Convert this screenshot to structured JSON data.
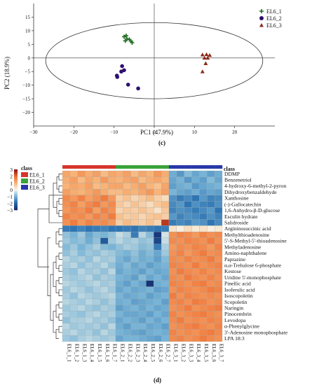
{
  "chart_data": [
    {
      "type": "scatter",
      "panel_label": "(c)",
      "xlabel": "PC1 (47.9%)",
      "ylabel": "PC2 (18.9%)",
      "xlim": [
        -30,
        30
      ],
      "ylim": [
        -25,
        20
      ],
      "xticks": [
        -30,
        -20,
        -10,
        0,
        10,
        20
      ],
      "yticks": [
        -20,
        -15,
        -10,
        -5,
        0,
        5,
        10,
        15
      ],
      "ellipse": true,
      "legend_position": "top-right",
      "series": [
        {
          "name": "EL6_1",
          "marker": "plus",
          "color": "#1f6b1f",
          "x": [
            -7.5,
            -6.8,
            -6.2,
            -7.2,
            -5.8,
            -7.0,
            -5.5
          ],
          "y": [
            7.8,
            7.0,
            6.8,
            6.3,
            6.2,
            8.2,
            5.6
          ]
        },
        {
          "name": "EL6_2",
          "marker": "circle",
          "color": "#2e0f6e",
          "x": [
            -8.0,
            -7.5,
            -8.2,
            -9.3,
            -9.2,
            -6.5,
            -4.0
          ],
          "y": [
            -3.0,
            -4.5,
            -5.0,
            -6.5,
            -7.0,
            -9.8,
            -11.2
          ]
        },
        {
          "name": "EL6_3",
          "marker": "triangle",
          "color": "#8b2a1a",
          "x": [
            12.0,
            13.0,
            13.8,
            12.5,
            13.3,
            12.8,
            12.0
          ],
          "y": [
            1.2,
            1.3,
            1.0,
            0.0,
            0.0,
            -2.0,
            -5.0
          ]
        }
      ]
    },
    {
      "type": "heatmap",
      "panel_label": "(d)",
      "class_label": "class",
      "class_legend": [
        {
          "name": "EL6_1",
          "color": "#d7342b"
        },
        {
          "name": "EL6_2",
          "color": "#3aa33a"
        },
        {
          "name": "EL6_3",
          "color": "#2838a8"
        }
      ],
      "colorbar": {
        "min": -3,
        "max": 3,
        "ticks": [
          3,
          2,
          1,
          0,
          -1,
          -2,
          -3
        ]
      },
      "columns": [
        "EL6_1_1",
        "EL6_1_2",
        "EL6_1_3",
        "EL6_1_4",
        "EL6_1_5",
        "EL6_1_6",
        "EL6_1_7",
        "EL6_2_1",
        "EL6_2_2",
        "EL6_2_3",
        "EL6_2_4",
        "EL6_2_5",
        "EL6_2_6",
        "EL6_2_7",
        "EL6_3_1",
        "EL6_3_2",
        "EL6_3_3",
        "EL6_3_4",
        "EL6_3_5",
        "EL6_3_6",
        "EL6_3_7"
      ],
      "column_groups": [
        0,
        0,
        0,
        0,
        0,
        0,
        0,
        1,
        1,
        1,
        1,
        1,
        1,
        1,
        2,
        2,
        2,
        2,
        2,
        2,
        2
      ],
      "rows": [
        "DDMP",
        "Benzenetriol",
        "4-hydroxy-6-methyl-2-pyron",
        "Dihydroxybenzaldehyde",
        "Xanthosine",
        "(-)-Gallocatechin",
        "1,6-Anhydro-β-D-glucose",
        "Esculin hydrate",
        "Salidroside",
        "Argininosuccinic acid",
        "Methylthioadenosine",
        "5'-S-Methyl-5'-thioadenosine",
        "Methyladenosine",
        "Amino-naphthalene",
        "Paprazine",
        "α,α-Trehalose 6-phosphate",
        "Kestose",
        "Uridine 5'-monophosphate",
        "Pinellic acid",
        "Isoferulic acid",
        "Isoscopoletin",
        "Scopoletin",
        "Naringin",
        "Pinocembrin",
        "Levodopa",
        "α-Phenylglycine",
        "3'-Adenosine monophosphate",
        "LPA 18:3"
      ],
      "values": [
        [
          1.2,
          1.0,
          1.4,
          1.1,
          1.3,
          0.9,
          1.2,
          1.1,
          1.3,
          0.9,
          1.2,
          1.0,
          1.4,
          1.1,
          -1.1,
          -1.4,
          -0.9,
          -1.2,
          -1.0,
          -1.3,
          -1.1
        ],
        [
          1.1,
          1.3,
          0.9,
          1.2,
          1.0,
          1.4,
          1.1,
          1.0,
          1.2,
          1.3,
          0.9,
          1.1,
          1.2,
          1.0,
          -1.2,
          -1.0,
          -1.4,
          -1.1,
          -1.3,
          -0.9,
          -1.2
        ],
        [
          1.0,
          1.2,
          1.1,
          1.3,
          0.9,
          1.0,
          1.2,
          1.2,
          0.9,
          1.1,
          1.3,
          1.0,
          0.8,
          1.2,
          -1.3,
          -1.1,
          -1.0,
          -1.4,
          -1.2,
          -1.1,
          -1.0
        ],
        [
          1.3,
          1.1,
          1.0,
          1.2,
          1.4,
          1.1,
          0.9,
          0.9,
          1.1,
          1.0,
          1.2,
          1.4,
          1.0,
          1.3,
          -1.0,
          -1.2,
          -1.3,
          -1.1,
          -1.4,
          -1.2,
          -1.3
        ],
        [
          1.6,
          1.4,
          1.7,
          1.3,
          1.5,
          1.8,
          1.4,
          0.6,
          0.8,
          0.5,
          0.7,
          0.9,
          0.6,
          0.4,
          -1.5,
          -1.8,
          -1.6,
          -1.9,
          -1.4,
          -1.7,
          -1.6
        ],
        [
          1.5,
          1.7,
          1.3,
          1.6,
          1.8,
          1.4,
          1.6,
          0.7,
          0.5,
          0.8,
          0.6,
          0.4,
          0.7,
          0.9,
          -1.6,
          -1.4,
          -1.9,
          -1.5,
          -1.7,
          -1.8,
          -1.5
        ],
        [
          1.4,
          1.6,
          1.5,
          1.8,
          1.3,
          1.7,
          1.5,
          0.5,
          0.7,
          0.6,
          0.8,
          0.6,
          0.3,
          0.7,
          -1.7,
          -1.5,
          -1.6,
          -1.8,
          -1.6,
          -1.4,
          -1.9
        ],
        [
          1.7,
          1.5,
          1.6,
          1.4,
          1.7,
          1.5,
          1.8,
          0.8,
          0.6,
          0.7,
          0.5,
          0.7,
          0.8,
          0.6,
          -1.4,
          -1.7,
          -1.5,
          -1.6,
          -1.8,
          -1.5,
          -1.7
        ],
        [
          1.5,
          1.8,
          1.4,
          1.7,
          1.5,
          1.6,
          1.4,
          0.6,
          0.9,
          0.7,
          0.6,
          0.8,
          0.5,
          2.6,
          -1.8,
          -1.6,
          -1.7,
          -1.4,
          -1.5,
          -1.9,
          -1.6
        ],
        [
          -1.8,
          -1.9,
          -1.7,
          -1.9,
          -1.8,
          -1.7,
          -1.9,
          -1.9,
          -1.8,
          -1.9,
          -1.7,
          -1.8,
          -1.9,
          -1.8,
          0.3,
          0.1,
          0.4,
          0.2,
          0.3,
          0.1,
          0.2
        ],
        [
          -0.8,
          -1.0,
          -0.7,
          -1.2,
          -0.9,
          -1.0,
          -0.8,
          -0.4,
          -0.6,
          -1.8,
          -0.5,
          -0.9,
          -2.8,
          -0.3,
          1.5,
          1.7,
          1.6,
          1.4,
          1.7,
          1.5,
          1.6
        ],
        [
          -0.7,
          -0.9,
          -0.8,
          -1.1,
          -0.8,
          -2.3,
          -0.7,
          -0.5,
          -0.7,
          -0.6,
          -0.8,
          -0.7,
          -2.6,
          -0.4,
          1.6,
          1.5,
          1.7,
          1.6,
          1.5,
          1.8,
          1.5
        ],
        [
          -0.9,
          -0.7,
          -1.0,
          -0.8,
          -0.6,
          -0.9,
          -1.0,
          -0.8,
          -0.6,
          -0.7,
          -0.9,
          -0.8,
          -1.8,
          -0.6,
          1.4,
          1.6,
          1.5,
          1.7,
          1.6,
          1.4,
          1.7
        ],
        [
          -0.8,
          -0.6,
          -0.9,
          -0.7,
          -0.8,
          -0.6,
          -0.7,
          -0.9,
          -1.0,
          -0.8,
          -1.1,
          -0.9,
          -1.2,
          -0.7,
          1.5,
          1.7,
          1.4,
          1.6,
          1.8,
          1.5,
          1.6
        ],
        [
          -0.5,
          -0.7,
          -0.6,
          -0.8,
          -0.5,
          -0.7,
          -0.6,
          -1.0,
          -1.2,
          -0.9,
          -1.1,
          -1.0,
          -1.3,
          -0.9,
          1.6,
          1.5,
          1.7,
          1.5,
          1.6,
          1.8,
          1.5
        ],
        [
          -0.6,
          -0.5,
          -0.8,
          -0.6,
          -0.7,
          -0.5,
          -0.8,
          -1.1,
          -0.9,
          -1.2,
          -1.0,
          -1.3,
          -1.1,
          -1.0,
          1.7,
          1.6,
          1.5,
          1.8,
          1.5,
          1.6,
          1.7
        ],
        [
          -0.7,
          -0.8,
          -0.5,
          -0.7,
          -0.6,
          -0.8,
          -0.5,
          -1.2,
          -1.0,
          -1.1,
          -1.3,
          -1.0,
          -1.2,
          -1.1,
          1.5,
          1.8,
          1.6,
          1.5,
          1.7,
          1.5,
          1.6
        ],
        [
          -0.6,
          -0.7,
          -0.6,
          -0.5,
          -0.8,
          -0.6,
          -0.7,
          -1.0,
          -1.1,
          -1.3,
          -0.9,
          -1.2,
          -1.0,
          -1.2,
          1.6,
          1.5,
          1.8,
          1.6,
          1.5,
          1.7,
          1.5
        ],
        [
          -0.5,
          -0.6,
          -0.7,
          -0.6,
          -0.5,
          -0.7,
          -0.6,
          -1.1,
          -1.3,
          -1.0,
          -1.2,
          -2.9,
          -1.1,
          -1.0,
          1.7,
          1.6,
          1.5,
          1.7,
          1.8,
          1.5,
          1.6
        ],
        [
          -0.7,
          -0.5,
          -0.6,
          -0.8,
          -0.6,
          -0.5,
          -0.7,
          -1.2,
          -1.0,
          -1.2,
          -1.1,
          -1.0,
          -1.3,
          -1.2,
          1.5,
          1.7,
          1.6,
          1.5,
          1.6,
          1.8,
          1.7
        ],
        [
          -0.6,
          -0.8,
          -0.5,
          -0.6,
          -0.7,
          -0.6,
          -0.5,
          -1.0,
          -1.2,
          -1.1,
          -1.0,
          -1.3,
          -1.1,
          -1.0,
          1.8,
          1.5,
          1.7,
          1.6,
          1.5,
          1.6,
          1.5
        ],
        [
          -0.5,
          -0.6,
          -0.7,
          -0.5,
          -0.6,
          -0.8,
          -0.6,
          -1.1,
          -1.0,
          -1.3,
          -1.2,
          -1.1,
          -1.0,
          -1.3,
          1.6,
          1.7,
          1.5,
          1.8,
          1.7,
          1.5,
          1.6
        ],
        [
          -0.7,
          -0.6,
          -0.5,
          -0.7,
          -0.8,
          -0.6,
          -0.7,
          -1.3,
          -1.1,
          -1.0,
          -1.2,
          -1.0,
          -1.2,
          -1.1,
          1.5,
          1.6,
          1.8,
          1.5,
          1.6,
          1.7,
          1.8
        ],
        [
          -0.6,
          -0.7,
          -0.8,
          -0.6,
          -0.5,
          -0.7,
          -0.6,
          -1.0,
          -1.2,
          -1.2,
          -1.1,
          -1.3,
          -1.0,
          -1.2,
          1.7,
          1.5,
          1.6,
          1.7,
          1.8,
          1.6,
          1.5
        ],
        [
          -0.8,
          -0.6,
          -0.6,
          -0.5,
          -0.7,
          -0.6,
          -0.8,
          -1.2,
          -1.0,
          -1.1,
          -1.3,
          -1.0,
          -1.2,
          -1.0,
          1.6,
          1.8,
          1.5,
          1.6,
          1.5,
          1.7,
          1.6
        ],
        [
          -0.5,
          -0.7,
          -0.6,
          -0.7,
          -0.6,
          -0.8,
          -0.5,
          -1.1,
          -1.3,
          -1.0,
          -1.0,
          -1.2,
          -1.1,
          -1.3,
          1.5,
          1.6,
          1.7,
          1.8,
          1.6,
          1.5,
          1.7
        ],
        [
          -0.6,
          -0.5,
          -0.7,
          -0.6,
          -0.8,
          -0.5,
          -0.7,
          -1.0,
          -1.1,
          -1.2,
          -1.3,
          -1.1,
          -1.0,
          -1.1,
          1.7,
          1.5,
          1.6,
          1.5,
          1.7,
          1.8,
          1.6
        ],
        [
          -0.7,
          -0.8,
          -0.6,
          -0.5,
          -0.6,
          -0.7,
          -0.6,
          -1.2,
          -1.0,
          -1.0,
          -1.1,
          -1.2,
          -1.3,
          -1.0,
          1.6,
          1.7,
          1.5,
          1.6,
          1.8,
          1.6,
          1.5
        ]
      ]
    }
  ]
}
